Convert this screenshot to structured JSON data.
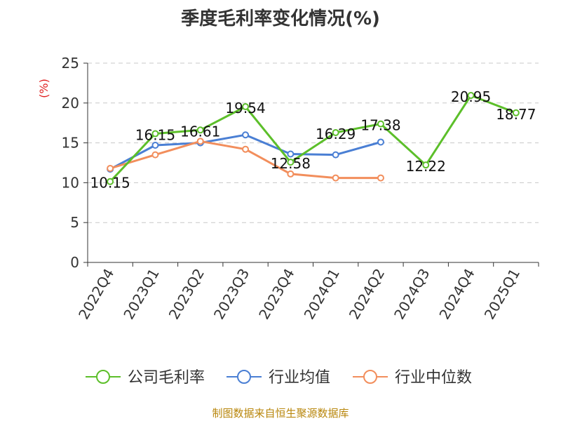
{
  "chart_data": {
    "type": "line",
    "title": "季度毛利率变化情况(%)",
    "ylabel": "(%)",
    "ylim": [
      0,
      25
    ],
    "yticks": [
      0,
      5,
      10,
      15,
      20,
      25
    ],
    "grid": true,
    "legend_position": "bottom",
    "categories": [
      "2022Q4",
      "2023Q1",
      "2023Q2",
      "2023Q3",
      "2023Q4",
      "2024Q1",
      "2024Q2",
      "2024Q3",
      "2024Q4",
      "2025Q1"
    ],
    "series": [
      {
        "name": "公司毛利率",
        "color": "#5cbf2a",
        "values": [
          10.15,
          16.15,
          16.61,
          19.54,
          12.58,
          16.29,
          17.38,
          12.22,
          20.95,
          18.77
        ],
        "labels": [
          "10.15",
          "16.15",
          "16.61",
          "19.54",
          "12.58",
          "16.29",
          "17.38",
          "12.22",
          "20.95",
          "18.77"
        ]
      },
      {
        "name": "行业均值",
        "color": "#4a7fd4",
        "values": [
          11.7,
          14.7,
          15.0,
          16.0,
          13.6,
          13.5,
          15.1,
          null,
          null,
          null
        ]
      },
      {
        "name": "行业中位数",
        "color": "#f28e5c",
        "values": [
          11.8,
          13.5,
          15.2,
          14.2,
          11.1,
          10.6,
          10.6,
          null,
          null,
          null
        ]
      }
    ]
  },
  "footer": {
    "source": "制图数据来自恒生聚源数据库"
  }
}
